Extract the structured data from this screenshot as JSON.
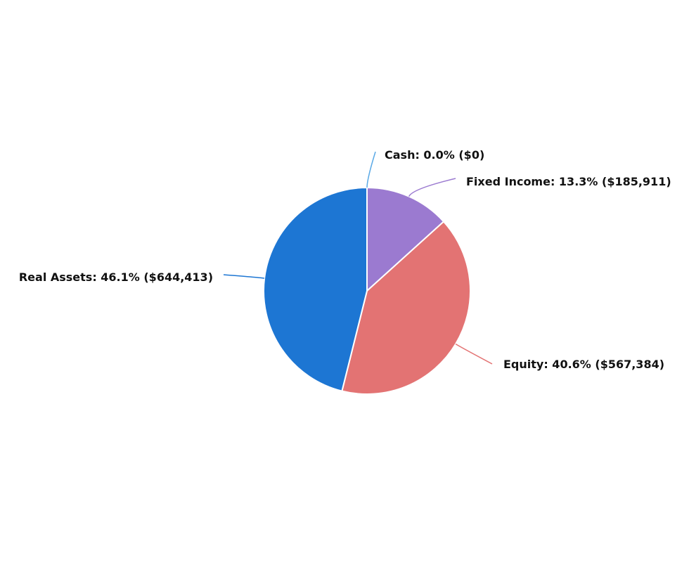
{
  "chart_data": {
    "type": "pie",
    "title": "",
    "slices": [
      {
        "label": "Cash",
        "percent_text": "0.0%",
        "amount_text": "$0",
        "value": 0,
        "color": "#5aa9e6"
      },
      {
        "label": "Fixed Income",
        "percent_text": "13.3%",
        "amount_text": "$185,911",
        "value": 185911,
        "color": "#9b7ad0"
      },
      {
        "label": "Equity",
        "percent_text": "40.6%",
        "amount_text": "$567,384",
        "value": 567384,
        "color": "#e37373"
      },
      {
        "label": "Real Assets",
        "percent_text": "46.1%",
        "amount_text": "$644,413",
        "value": 644413,
        "color": "#1d76d3"
      }
    ],
    "legend": "none",
    "data_labels": "outside with connector lines"
  }
}
